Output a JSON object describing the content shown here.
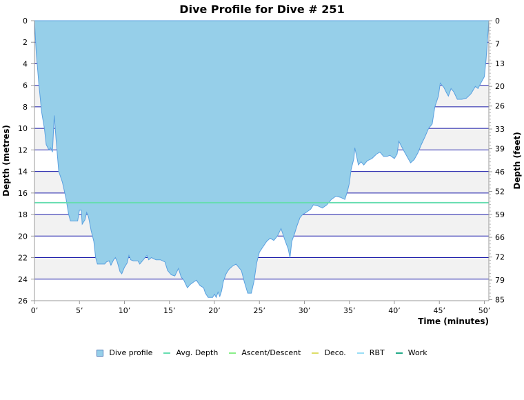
{
  "chart_data": {
    "type": "area",
    "title": "Dive Profile for Dive # 251",
    "xlabel": "Time (minutes)",
    "ylabel_left": "Depth (metres)",
    "ylabel_right": "Depth (feet)",
    "xlim": [
      0,
      50.5
    ],
    "ylim": [
      0,
      26
    ],
    "y_inverted": true,
    "x_ticks": [
      0,
      5,
      10,
      15,
      20,
      25,
      30,
      35,
      40,
      45,
      50
    ],
    "x_tick_labels": [
      "0’",
      "5’",
      "10’",
      "15’",
      "20’",
      "25’",
      "30’",
      "35’",
      "40’",
      "45’",
      "50’"
    ],
    "y_ticks": [
      0,
      2,
      4,
      6,
      8,
      10,
      12,
      14,
      16,
      18,
      20,
      22,
      24,
      26
    ],
    "y_tick_labels": [
      "0",
      "2",
      "4",
      "6",
      "8",
      "10",
      "12",
      "14",
      "16",
      "18",
      "20",
      "22",
      "24",
      "26"
    ],
    "y2_ticks": [
      0,
      7,
      13,
      20,
      26,
      33,
      39,
      46,
      52,
      59,
      66,
      72,
      79,
      85
    ],
    "y2_tick_labels": [
      "0",
      "7",
      "13",
      "20",
      "26",
      "33",
      "39",
      "46",
      "52",
      "59",
      "66",
      "72",
      "79",
      "85"
    ],
    "grid": true,
    "avg_depth": 16.9,
    "series": [
      {
        "name": "Dive profile",
        "color": "#96cfe9",
        "stroke": "#5aa0e0",
        "points": [
          [
            0,
            0
          ],
          [
            0.2,
            3
          ],
          [
            0.5,
            6
          ],
          [
            0.8,
            8.5
          ],
          [
            1.1,
            10
          ],
          [
            1.3,
            11.5
          ],
          [
            1.6,
            12
          ],
          [
            1.8,
            11.8
          ],
          [
            2.0,
            12.2
          ],
          [
            2.2,
            8.8
          ],
          [
            2.4,
            11
          ],
          [
            2.7,
            14
          ],
          [
            3.1,
            15
          ],
          [
            3.5,
            16.5
          ],
          [
            3.8,
            18
          ],
          [
            4.0,
            18.6
          ],
          [
            4.8,
            18.6
          ],
          [
            5.0,
            17.6
          ],
          [
            5.2,
            17.6
          ],
          [
            5.3,
            18.9
          ],
          [
            5.6,
            18.5
          ],
          [
            5.8,
            17.8
          ],
          [
            6.0,
            18.2
          ],
          [
            6.3,
            19.5
          ],
          [
            6.6,
            20.5
          ],
          [
            6.8,
            22
          ],
          [
            7.0,
            22.6
          ],
          [
            7.8,
            22.6
          ],
          [
            8.0,
            22.4
          ],
          [
            8.3,
            22.3
          ],
          [
            8.5,
            22.7
          ],
          [
            8.8,
            22.2
          ],
          [
            9.0,
            22
          ],
          [
            9.2,
            22.4
          ],
          [
            9.5,
            23.3
          ],
          [
            9.7,
            23.5
          ],
          [
            10.0,
            22.9
          ],
          [
            10.3,
            22.5
          ],
          [
            10.5,
            21.8
          ],
          [
            10.7,
            22.2
          ],
          [
            11.0,
            22.3
          ],
          [
            11.5,
            22.3
          ],
          [
            11.7,
            22.6
          ],
          [
            12.0,
            22.3
          ],
          [
            12.5,
            21.8
          ],
          [
            12.7,
            22.2
          ],
          [
            13.0,
            22
          ],
          [
            13.5,
            22.2
          ],
          [
            14.0,
            22.2
          ],
          [
            14.5,
            22.4
          ],
          [
            14.8,
            23.2
          ],
          [
            15.2,
            23.6
          ],
          [
            15.6,
            23.7
          ],
          [
            16.0,
            23
          ],
          [
            16.3,
            23.8
          ],
          [
            16.6,
            24.1
          ],
          [
            17.0,
            24.8
          ],
          [
            17.3,
            24.5
          ],
          [
            17.8,
            24.2
          ],
          [
            18.0,
            24.1
          ],
          [
            18.4,
            24.6
          ],
          [
            18.8,
            24.8
          ],
          [
            19.0,
            25.3
          ],
          [
            19.3,
            25.7
          ],
          [
            19.8,
            25.7
          ],
          [
            20.0,
            25.4
          ],
          [
            20.2,
            25.7
          ],
          [
            20.4,
            25.2
          ],
          [
            20.6,
            25.6
          ],
          [
            20.8,
            25.1
          ],
          [
            21.0,
            24.2
          ],
          [
            21.3,
            23.5
          ],
          [
            21.6,
            23.1
          ],
          [
            22.0,
            22.8
          ],
          [
            22.4,
            22.6
          ],
          [
            22.8,
            23
          ],
          [
            23.0,
            23.2
          ],
          [
            23.3,
            24.2
          ],
          [
            23.7,
            25.3
          ],
          [
            24.1,
            25.3
          ],
          [
            24.4,
            24.2
          ],
          [
            24.7,
            22.5
          ],
          [
            25.0,
            21.5
          ],
          [
            25.4,
            21
          ],
          [
            25.8,
            20.5
          ],
          [
            26.2,
            20.2
          ],
          [
            26.6,
            20.4
          ],
          [
            27.0,
            20
          ],
          [
            27.4,
            19.3
          ],
          [
            27.8,
            20.3
          ],
          [
            28.2,
            21.2
          ],
          [
            28.4,
            22
          ],
          [
            28.6,
            20.5
          ],
          [
            28.9,
            19.8
          ],
          [
            29.2,
            19
          ],
          [
            29.5,
            18.3
          ],
          [
            29.8,
            18
          ],
          [
            30.2,
            17.8
          ],
          [
            30.7,
            17.5
          ],
          [
            31.0,
            17.1
          ],
          [
            31.5,
            17.2
          ],
          [
            32.0,
            17.4
          ],
          [
            32.5,
            17.1
          ],
          [
            33.0,
            16.6
          ],
          [
            33.5,
            16.3
          ],
          [
            34.0,
            16.4
          ],
          [
            34.5,
            16.6
          ],
          [
            34.8,
            15.8
          ],
          [
            35.0,
            15.1
          ],
          [
            35.2,
            13.8
          ],
          [
            35.5,
            12.8
          ],
          [
            35.6,
            11.8
          ],
          [
            36.0,
            13.4
          ],
          [
            36.3,
            13.1
          ],
          [
            36.6,
            13.4
          ],
          [
            37.0,
            13
          ],
          [
            37.5,
            12.8
          ],
          [
            38.0,
            12.4
          ],
          [
            38.4,
            12.2
          ],
          [
            38.8,
            12.6
          ],
          [
            39.2,
            12.6
          ],
          [
            39.5,
            12.5
          ],
          [
            40.0,
            12.8
          ],
          [
            40.3,
            12.4
          ],
          [
            40.5,
            11.2
          ],
          [
            41.0,
            12
          ],
          [
            41.4,
            12.6
          ],
          [
            41.8,
            13.2
          ],
          [
            42.2,
            12.9
          ],
          [
            42.6,
            12.3
          ],
          [
            43.0,
            11.5
          ],
          [
            43.4,
            10.8
          ],
          [
            43.8,
            10
          ],
          [
            44.2,
            9.6
          ],
          [
            44.5,
            8
          ],
          [
            44.9,
            7
          ],
          [
            45.1,
            5.8
          ],
          [
            45.5,
            6.2
          ],
          [
            45.8,
            6.7
          ],
          [
            46.0,
            7
          ],
          [
            46.3,
            6.3
          ],
          [
            46.6,
            6.6
          ],
          [
            47.0,
            7.3
          ],
          [
            47.5,
            7.3
          ],
          [
            48.0,
            7.2
          ],
          [
            48.5,
            6.8
          ],
          [
            48.8,
            6.4
          ],
          [
            49.0,
            6.1
          ],
          [
            49.3,
            6.3
          ],
          [
            49.6,
            5.8
          ],
          [
            50.0,
            5.2
          ],
          [
            50.2,
            3.5
          ],
          [
            50.4,
            1.2
          ],
          [
            50.5,
            0
          ]
        ]
      }
    ],
    "legend": [
      {
        "name": "Dive profile",
        "color": "#96cfe9",
        "kind": "box"
      },
      {
        "name": "Avg. Depth",
        "color": "#66ddb0",
        "kind": "line"
      },
      {
        "name": "Ascent/Descent",
        "color": "#88ee88",
        "kind": "line"
      },
      {
        "name": "Deco.",
        "color": "#dddd66",
        "kind": "line"
      },
      {
        "name": "RBT",
        "color": "#99ddf6",
        "kind": "line"
      },
      {
        "name": "Work",
        "color": "#22aa88",
        "kind": "line"
      }
    ],
    "legend_placement": "bottom"
  }
}
